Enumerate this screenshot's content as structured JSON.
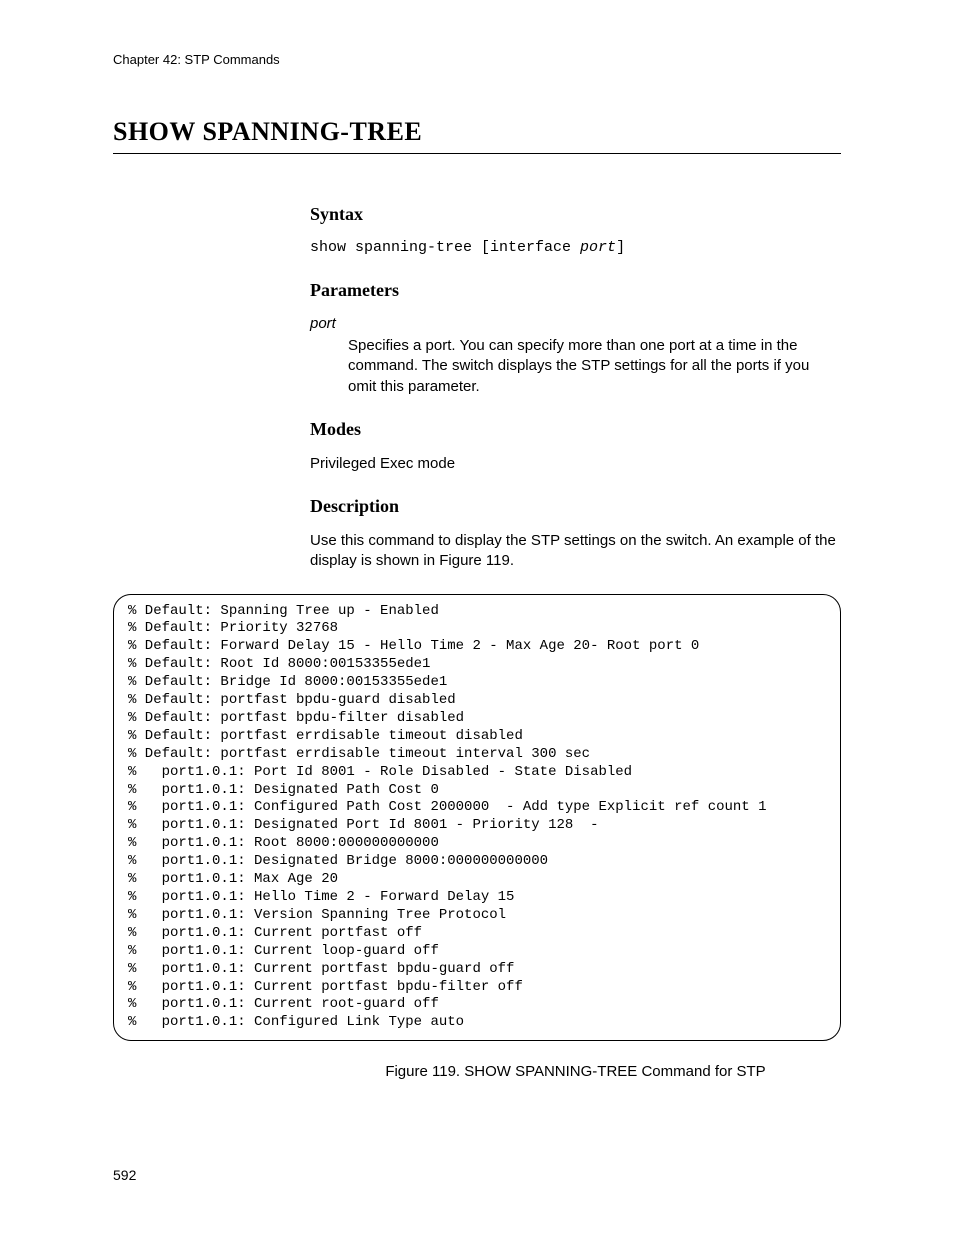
{
  "chapter_header": "Chapter 42: STP Commands",
  "page_title": "SHOW SPANNING-TREE",
  "sections": {
    "syntax": {
      "heading": "Syntax",
      "cmd_prefix": "show spanning-tree [interface ",
      "cmd_var": "port",
      "cmd_suffix": "]"
    },
    "parameters": {
      "heading": "Parameters",
      "name": "port",
      "desc": "Specifies a port. You can specify more than one port at a time in the command. The switch displays the STP settings for all the ports if you omit this parameter."
    },
    "modes": {
      "heading": "Modes",
      "text": "Privileged Exec mode"
    },
    "description": {
      "heading": "Description",
      "text": "Use this command to display the STP settings on the switch. An example of the display is shown in Figure 119."
    }
  },
  "code_lines": [
    "% Default: Spanning Tree up - Enabled",
    "% Default: Priority 32768",
    "% Default: Forward Delay 15 - Hello Time 2 - Max Age 20- Root port 0",
    "% Default: Root Id 8000:00153355ede1",
    "% Default: Bridge Id 8000:00153355ede1",
    "% Default: portfast bpdu-guard disabled",
    "% Default: portfast bpdu-filter disabled",
    "% Default: portfast errdisable timeout disabled",
    "% Default: portfast errdisable timeout interval 300 sec",
    "%   port1.0.1: Port Id 8001 - Role Disabled - State Disabled",
    "%   port1.0.1: Designated Path Cost 0",
    "%   port1.0.1: Configured Path Cost 2000000  - Add type Explicit ref count 1",
    "%   port1.0.1: Designated Port Id 8001 - Priority 128  -",
    "%   port1.0.1: Root 8000:000000000000",
    "%   port1.0.1: Designated Bridge 8000:000000000000",
    "%   port1.0.1: Max Age 20",
    "%   port1.0.1: Hello Time 2 - Forward Delay 15",
    "%   port1.0.1: Version Spanning Tree Protocol",
    "%   port1.0.1: Current portfast off",
    "%   port1.0.1: Current loop-guard off",
    "%   port1.0.1: Current portfast bpdu-guard off",
    "%   port1.0.1: Current portfast bpdu-filter off",
    "%   port1.0.1: Current root-guard off",
    "%   port1.0.1: Configured Link Type auto"
  ],
  "figure_caption": "Figure 119. SHOW SPANNING-TREE Command for STP",
  "page_number": "592"
}
